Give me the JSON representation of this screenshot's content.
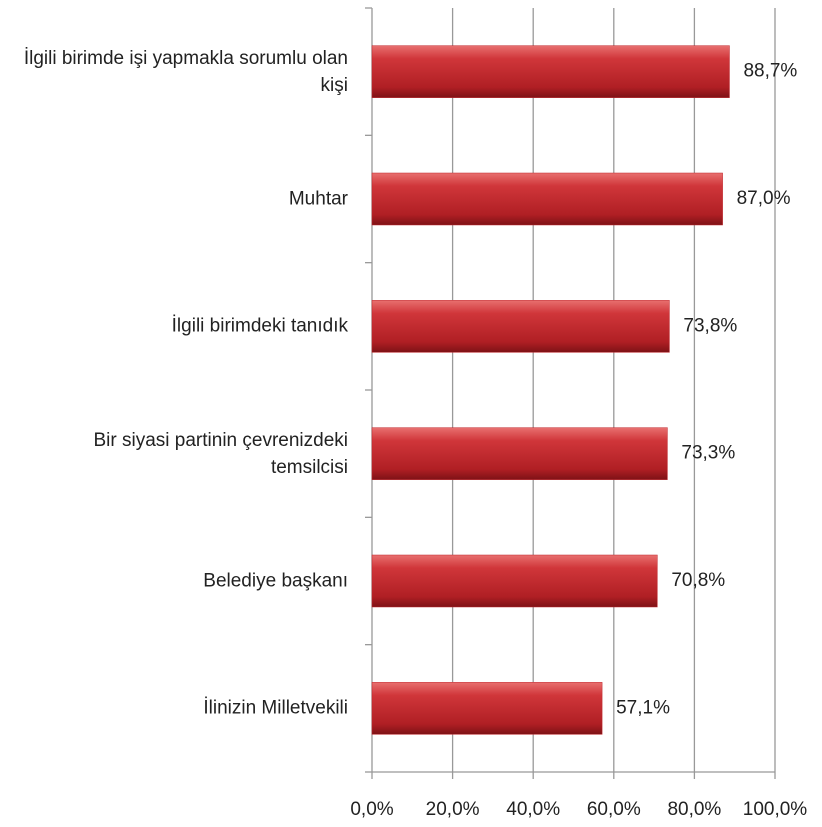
{
  "chart_data": {
    "type": "bar",
    "orientation": "horizontal",
    "categories": [
      "İlgili birimde işi yapmakla sorumlu olan kişi",
      "Muhtar",
      "İlgili birimdeki tanıdık",
      "Bir siyasi partinin çevrenizdeki temsilcisi",
      "Belediye başkanı",
      "İlinizin Milletvekili"
    ],
    "values": [
      88.7,
      87.0,
      73.8,
      73.3,
      70.8,
      57.1
    ],
    "value_labels": [
      "88,7%",
      "87,0%",
      "73,8%",
      "73,3%",
      "70,8%",
      "57,1%"
    ],
    "color": "#c0272d",
    "xlim": [
      0,
      100
    ],
    "xticks": [
      {
        "value": 0,
        "label": "0,0%"
      },
      {
        "value": 20,
        "label": "20,0%"
      },
      {
        "value": 40,
        "label": "40,0%"
      },
      {
        "value": 60,
        "label": "60,0%"
      },
      {
        "value": 80,
        "label": "80,0%"
      },
      {
        "value": 100,
        "label": "100,0%"
      }
    ],
    "grid": true
  }
}
